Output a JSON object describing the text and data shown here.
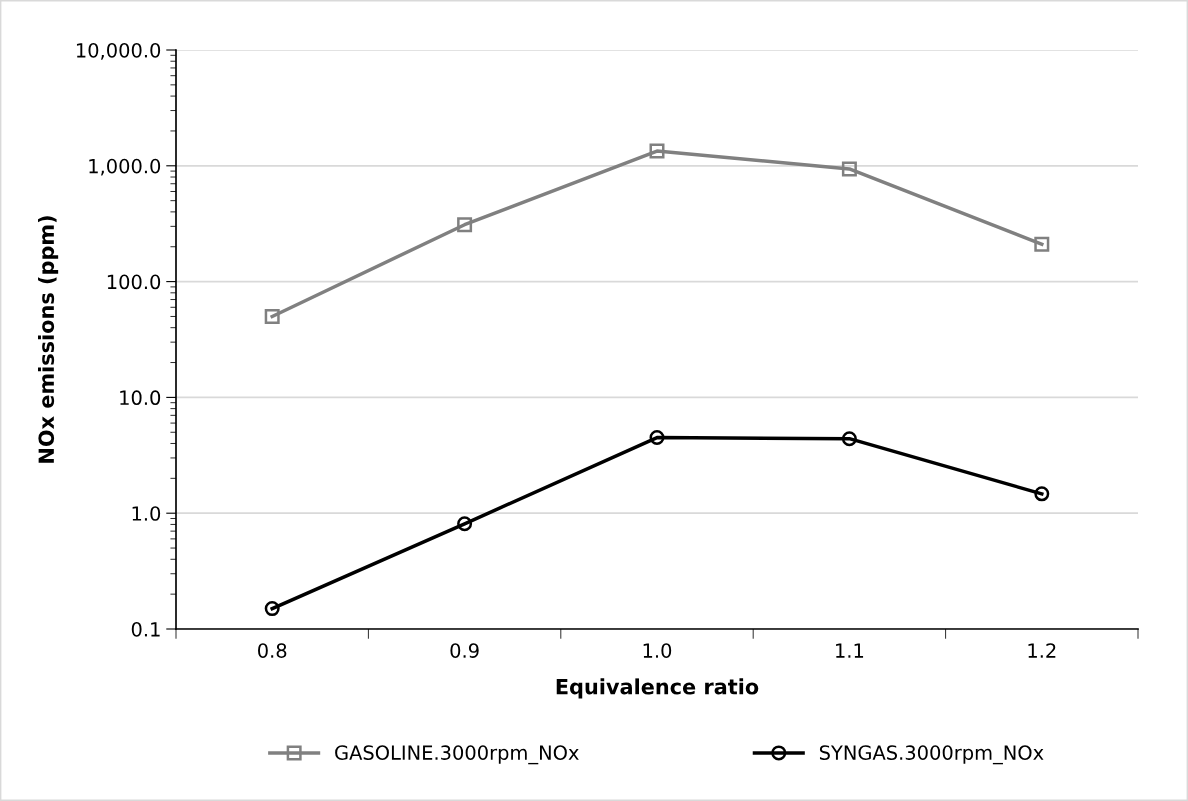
{
  "chart_data": {
    "type": "line",
    "xlabel": "Equivalence ratio",
    "ylabel": "NOx emissions (ppm)",
    "categories": [
      "0.8",
      "0.9",
      "1.0",
      "1.1",
      "1.2"
    ],
    "series": [
      {
        "name": "GASOLINE.3000rpm_NOx",
        "color": "#808080",
        "marker": "square",
        "values": [
          50,
          310,
          1340,
          940,
          210
        ]
      },
      {
        "name": "SYNGAS.3000rpm_NOx",
        "color": "#000000",
        "marker": "circle",
        "values": [
          0.15,
          0.81,
          4.5,
          4.4,
          1.47
        ]
      }
    ],
    "log": "y",
    "ylim": [
      0.1,
      10000
    ],
    "yticks": [
      {
        "value": 0.1,
        "label": "0.1"
      },
      {
        "value": 1,
        "label": "1.0"
      },
      {
        "value": 10,
        "label": "10.0"
      },
      {
        "value": 100,
        "label": "100.0"
      },
      {
        "value": 1000,
        "label": "1,000.0"
      },
      {
        "value": 10000,
        "label": "10,000.0"
      }
    ],
    "grid": "y",
    "legend": "bottom",
    "line_style": "solid"
  }
}
